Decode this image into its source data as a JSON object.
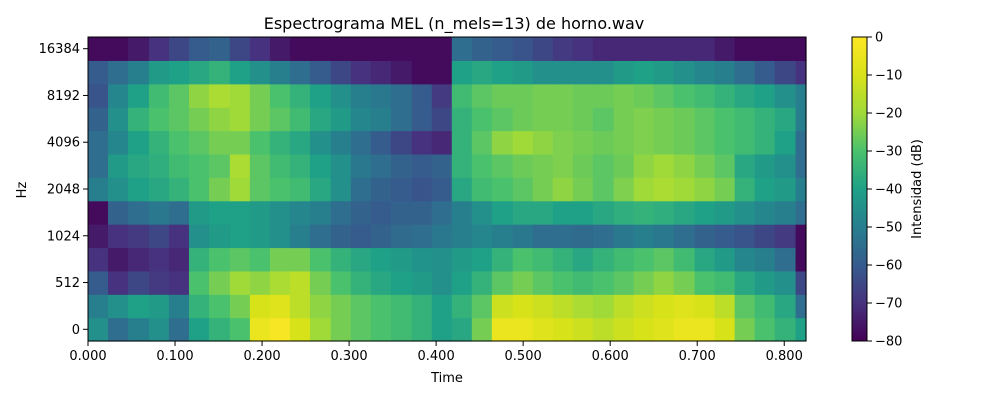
{
  "chart_data": {
    "type": "heatmap",
    "title": "Espectrograma MEL (n_mels=13) de horno.wav",
    "xlabel": "Time",
    "ylabel": "Hz",
    "xlim": [
      0.0,
      0.825
    ],
    "x_ticks": [
      "0.000",
      "0.100",
      "0.200",
      "0.300",
      "0.400",
      "0.500",
      "0.600",
      "0.700",
      "0.800"
    ],
    "x_tick_values": [
      0.0,
      0.1,
      0.2,
      0.3,
      0.4,
      0.5,
      0.6,
      0.7,
      0.8
    ],
    "y_ticks": [
      "0",
      "512",
      "1024",
      "2048",
      "4096",
      "8192",
      "16384"
    ],
    "n_mels": 13,
    "colormap": "viridis",
    "colorbar": {
      "label": "Intensidad (dB)",
      "range": [
        -80,
        0
      ],
      "ticks": [
        "0",
        "−10",
        "−20",
        "−30",
        "−40",
        "−50",
        "−60",
        "−70",
        "−80"
      ],
      "tick_values": [
        0,
        -10,
        -20,
        -30,
        -40,
        -50,
        -60,
        -70,
        -80
      ]
    },
    "frame_times": [
      0.0,
      0.023,
      0.046,
      0.07,
      0.093,
      0.116,
      0.139,
      0.163,
      0.186,
      0.209,
      0.232,
      0.255,
      0.279,
      0.302,
      0.325,
      0.348,
      0.372,
      0.395,
      0.418,
      0.441,
      0.464,
      0.488,
      0.511,
      0.534,
      0.557,
      0.58,
      0.604,
      0.627,
      0.65,
      0.673,
      0.697,
      0.72,
      0.743,
      0.766,
      0.789,
      0.813
    ],
    "rows": [
      {
        "band": 0,
        "db": [
          -45,
          -55,
          -50,
          -45,
          -55,
          -40,
          -35,
          -30,
          -5,
          -2,
          -10,
          -20,
          -25,
          -28,
          -30,
          -32,
          -35,
          -40,
          -38,
          -25,
          -5,
          -5,
          -8,
          -10,
          -12,
          -15,
          -12,
          -10,
          -8,
          -5,
          -5,
          -10,
          -25,
          -30,
          -35,
          -40
        ]
      },
      {
        "band": 1,
        "db": [
          -50,
          -45,
          -40,
          -42,
          -50,
          -35,
          -30,
          -25,
          -10,
          -8,
          -15,
          -22,
          -25,
          -28,
          -30,
          -32,
          -35,
          -40,
          -35,
          -28,
          -12,
          -10,
          -12,
          -15,
          -18,
          -20,
          -15,
          -12,
          -10,
          -8,
          -10,
          -15,
          -28,
          -32,
          -38,
          -55
        ]
      },
      {
        "band": 2,
        "db": [
          -60,
          -70,
          -65,
          -68,
          -70,
          -30,
          -25,
          -20,
          -22,
          -18,
          -15,
          -25,
          -30,
          -35,
          -38,
          -40,
          -42,
          -45,
          -40,
          -35,
          -28,
          -25,
          -28,
          -30,
          -32,
          -30,
          -28,
          -25,
          -22,
          -25,
          -30,
          -32,
          -38,
          -42,
          -45,
          -65
        ]
      },
      {
        "band": 3,
        "db": [
          -70,
          -75,
          -72,
          -70,
          -72,
          -35,
          -30,
          -28,
          -30,
          -25,
          -25,
          -30,
          -35,
          -38,
          -40,
          -42,
          -44,
          -45,
          -42,
          -40,
          -35,
          -30,
          -32,
          -35,
          -38,
          -35,
          -32,
          -30,
          -28,
          -32,
          -38,
          -42,
          -48,
          -50,
          -55,
          -78
        ]
      },
      {
        "band": 4,
        "db": [
          -75,
          -70,
          -68,
          -65,
          -70,
          -45,
          -42,
          -40,
          -42,
          -45,
          -50,
          -55,
          -58,
          -60,
          -58,
          -56,
          -55,
          -52,
          -50,
          -48,
          -50,
          -52,
          -55,
          -55,
          -56,
          -55,
          -52,
          -50,
          -52,
          -55,
          -58,
          -60,
          -62,
          -65,
          -68,
          -78
        ]
      },
      {
        "band": 5,
        "db": [
          -78,
          -58,
          -55,
          -52,
          -55,
          -42,
          -40,
          -40,
          -42,
          -45,
          -48,
          -50,
          -55,
          -58,
          -60,
          -58,
          -58,
          -55,
          -50,
          -45,
          -40,
          -38,
          -38,
          -40,
          -40,
          -38,
          -36,
          -35,
          -36,
          -38,
          -40,
          -42,
          -45,
          -48,
          -50,
          -55
        ]
      },
      {
        "band": 6,
        "db": [
          -50,
          -45,
          -40,
          -38,
          -35,
          -30,
          -25,
          -20,
          -28,
          -30,
          -32,
          -38,
          -45,
          -55,
          -58,
          -60,
          -62,
          -60,
          -38,
          -32,
          -30,
          -28,
          -25,
          -22,
          -25,
          -28,
          -24,
          -20,
          -18,
          -20,
          -22,
          -25,
          -35,
          -40,
          -42,
          -50
        ]
      },
      {
        "band": 7,
        "db": [
          -55,
          -42,
          -38,
          -36,
          -32,
          -30,
          -28,
          -18,
          -28,
          -32,
          -35,
          -40,
          -45,
          -52,
          -55,
          -58,
          -60,
          -58,
          -35,
          -30,
          -28,
          -26,
          -25,
          -24,
          -26,
          -28,
          -26,
          -22,
          -20,
          -22,
          -25,
          -28,
          -38,
          -42,
          -45,
          -55
        ]
      },
      {
        "band": 8,
        "db": [
          -55,
          -48,
          -40,
          -35,
          -30,
          -28,
          -25,
          -25,
          -30,
          -35,
          -38,
          -45,
          -50,
          -55,
          -60,
          -65,
          -70,
          -72,
          -35,
          -28,
          -22,
          -20,
          -22,
          -24,
          -25,
          -26,
          -25,
          -24,
          -25,
          -26,
          -28,
          -30,
          -32,
          -35,
          -40,
          -55
        ]
      },
      {
        "band": 9,
        "db": [
          -58,
          -45,
          -35,
          -30,
          -28,
          -25,
          -22,
          -20,
          -25,
          -28,
          -32,
          -38,
          -42,
          -48,
          -50,
          -55,
          -60,
          -65,
          -35,
          -30,
          -28,
          -26,
          -25,
          -25,
          -26,
          -28,
          -25,
          -24,
          -25,
          -26,
          -28,
          -30,
          -32,
          -35,
          -38,
          -50
        ]
      },
      {
        "band": 10,
        "db": [
          -62,
          -48,
          -40,
          -32,
          -28,
          -22,
          -18,
          -20,
          -25,
          -30,
          -35,
          -40,
          -45,
          -50,
          -52,
          -55,
          -60,
          -68,
          -32,
          -28,
          -26,
          -26,
          -25,
          -25,
          -26,
          -26,
          -25,
          -26,
          -28,
          -30,
          -32,
          -35,
          -38,
          -40,
          -45,
          -50
        ]
      },
      {
        "band": 11,
        "db": [
          -60,
          -55,
          -50,
          -42,
          -40,
          -38,
          -35,
          -40,
          -45,
          -50,
          -55,
          -60,
          -65,
          -70,
          -72,
          -75,
          -78,
          -78,
          -40,
          -38,
          -40,
          -42,
          -45,
          -45,
          -45,
          -45,
          -42,
          -40,
          -42,
          -45,
          -48,
          -50,
          -55,
          -60,
          -65,
          -70
        ]
      },
      {
        "band": 12,
        "db": [
          -78,
          -78,
          -75,
          -70,
          -65,
          -60,
          -58,
          -65,
          -70,
          -75,
          -78,
          -78,
          -78,
          -78,
          -78,
          -78,
          -78,
          -78,
          -55,
          -58,
          -60,
          -62,
          -65,
          -68,
          -70,
          -72,
          -72,
          -72,
          -72,
          -72,
          -72,
          -75,
          -78,
          -78,
          -78,
          -78
        ]
      }
    ]
  }
}
